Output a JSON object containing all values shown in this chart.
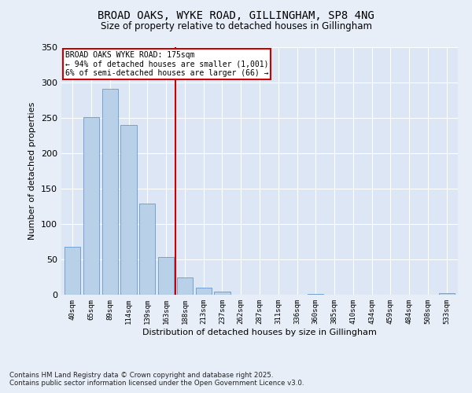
{
  "title_line1": "BROAD OAKS, WYKE ROAD, GILLINGHAM, SP8 4NG",
  "title_line2": "Size of property relative to detached houses in Gillingham",
  "xlabel": "Distribution of detached houses by size in Gillingham",
  "ylabel": "Number of detached properties",
  "categories": [
    "40sqm",
    "65sqm",
    "89sqm",
    "114sqm",
    "139sqm",
    "163sqm",
    "188sqm",
    "213sqm",
    "237sqm",
    "262sqm",
    "287sqm",
    "311sqm",
    "336sqm",
    "360sqm",
    "385sqm",
    "410sqm",
    "434sqm",
    "459sqm",
    "484sqm",
    "508sqm",
    "533sqm"
  ],
  "values": [
    68,
    251,
    291,
    240,
    129,
    53,
    25,
    10,
    4,
    0,
    0,
    0,
    0,
    1,
    0,
    0,
    0,
    0,
    0,
    0,
    2
  ],
  "bar_color": "#b8d0e8",
  "bar_edge_color": "#6699cc",
  "vline_x_index": 6,
  "vline_color": "#cc0000",
  "annotation_text": "BROAD OAKS WYKE ROAD: 175sqm\n← 94% of detached houses are smaller (1,001)\n6% of semi-detached houses are larger (66) →",
  "annotation_box_color": "#ffffff",
  "annotation_box_edge": "#cc0000",
  "ylim": [
    0,
    350
  ],
  "yticks": [
    0,
    50,
    100,
    150,
    200,
    250,
    300,
    350
  ],
  "plot_bg_color": "#dce6f5",
  "fig_bg_color": "#e8eef7",
  "grid_color": "#ffffff",
  "footer_line1": "Contains HM Land Registry data © Crown copyright and database right 2025.",
  "footer_line2": "Contains public sector information licensed under the Open Government Licence v3.0."
}
